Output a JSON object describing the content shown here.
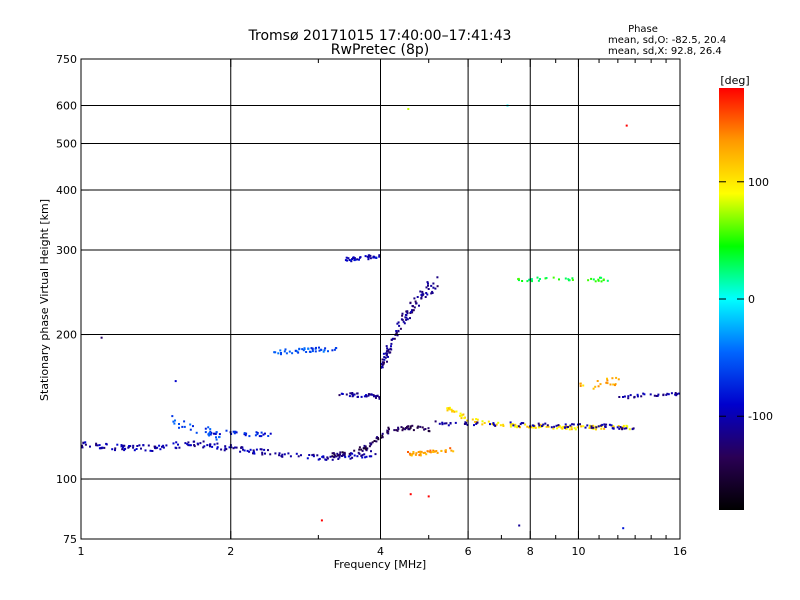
{
  "chart_data": {
    "type": "scatter",
    "title": "Tromsø 20171015 17:40:00–17:41:43",
    "subtitle": "RwPretec (8p)",
    "xlabel": "Frequency [MHz]",
    "ylabel": "Stationary phase Virtual Height [km]",
    "x_scale": "log",
    "y_scale": "log",
    "xlim": [
      1,
      16
    ],
    "ylim": [
      75,
      750
    ],
    "grid": true,
    "x_ticks": [
      "1",
      "2",
      "4",
      "6",
      "8",
      "10",
      "16"
    ],
    "x_minor_ticks": [
      3,
      5,
      7,
      9,
      11,
      12,
      13,
      14,
      15
    ],
    "x_gridlines": [
      2,
      4,
      6,
      8,
      10
    ],
    "y_ticks": [
      "75",
      "100",
      "200",
      "300",
      "400",
      "500",
      "600",
      "750"
    ],
    "y_gridlines": [
      100,
      200,
      300,
      400,
      500,
      600
    ],
    "stats": {
      "heading": "Phase",
      "line_o": "mean, sd,O: -82.5, 20.4",
      "line_x": "mean, sd,X:  92.8, 26.4"
    },
    "colorbar": {
      "label": "[deg]",
      "range": [
        -180,
        180
      ],
      "tick_labels": [
        "100",
        "0",
        "-100"
      ],
      "tick_values": [
        100,
        0,
        -100
      ],
      "colors": [
        "#ff0000",
        "#ff9900",
        "#ffff00",
        "#00ff00",
        "#00ffff",
        "#0066ff",
        "#0000cc",
        "#2a0055",
        "#000000"
      ]
    },
    "traces": [
      {
        "x": [
          1.0,
          1.25,
          1.4,
          1.6,
          1.8,
          2.0,
          2.3,
          2.6,
          2.8,
          3.0,
          3.3,
          3.6,
          3.9
        ],
        "y": [
          118,
          116,
          116,
          118,
          118,
          116,
          114,
          112,
          111,
          111,
          111,
          112,
          113
        ],
        "phase": -105,
        "spread": 1.5,
        "n": 180
      },
      {
        "x": [
          3.2,
          3.5,
          3.8,
          4.0,
          4.2,
          4.6,
          5.0
        ],
        "y": [
          112,
          113,
          117,
          123,
          127,
          128,
          127
        ],
        "phase": -135,
        "spread": 1.2,
        "n": 90
      },
      {
        "x": [
          4.5,
          4.8,
          5.2,
          5.6
        ],
        "y": [
          113,
          113,
          114,
          115
        ],
        "phase": 135,
        "spread": 1.0,
        "n": 40
      },
      {
        "x": [
          5.4,
          6.0,
          6.5,
          7.0,
          7.5,
          8.0,
          9.0,
          10.0,
          11.0,
          12.0,
          13.0
        ],
        "y": [
          141,
          133,
          131,
          130,
          129,
          129,
          128,
          128,
          128,
          128,
          128
        ],
        "phase": 105,
        "spread": 1.0,
        "n": 110
      },
      {
        "x": [
          5.2,
          6.0,
          7.0,
          8.0,
          9.0,
          10.0,
          11.0,
          12.0,
          13.0
        ],
        "y": [
          131,
          130,
          130,
          130,
          129,
          129,
          129,
          128,
          128
        ],
        "phase": -110,
        "spread": 1.0,
        "n": 80
      },
      {
        "x": [
          1.8,
          2.0,
          2.2,
          2.4
        ],
        "y": [
          125,
          125,
          124,
          124
        ],
        "phase": -80,
        "spread": 1.0,
        "n": 35
      },
      {
        "x": [
          3.3,
          3.5,
          3.8,
          4.0
        ],
        "y": [
          150,
          150,
          149,
          148
        ],
        "phase": -110,
        "spread": 1.0,
        "n": 35
      },
      {
        "x": [
          2.4,
          2.7,
          3.0,
          3.3
        ],
        "y": [
          183,
          185,
          186,
          187
        ],
        "phase": -55,
        "spread": 1.2,
        "n": 45
      },
      {
        "x": [
          3.4,
          3.6,
          3.8,
          4.0
        ],
        "y": [
          286,
          288,
          290,
          292
        ],
        "phase": -95,
        "spread": 1.0,
        "n": 35
      },
      {
        "x": [
          4.0,
          4.4,
          4.8,
          5.2
        ],
        "y": [
          170,
          210,
          240,
          260
        ],
        "phase": -115,
        "spread": 3.5,
        "n": 110
      },
      {
        "x": [
          7.5,
          8.5,
          9.5,
          10.5,
          11.5
        ],
        "y": [
          260,
          261,
          262,
          261,
          260
        ],
        "phase": 40,
        "spread": 1.0,
        "n": 35
      },
      {
        "x": [
          12.0,
          13.0,
          14.0,
          15.0,
          16.0
        ],
        "y": [
          148,
          149,
          150,
          150,
          150
        ],
        "phase": -105,
        "spread": 1.0,
        "n": 30
      },
      {
        "x": [
          10.0,
          11.0,
          12.0
        ],
        "y": [
          155,
          158,
          160
        ],
        "phase": 120,
        "spread": 2.0,
        "n": 20
      },
      {
        "x": [
          1.5,
          1.7,
          1.9
        ],
        "y": [
          133,
          128,
          122
        ],
        "phase": -60,
        "spread": 2.5,
        "n": 25
      }
    ],
    "outliers": [
      {
        "x": 4.55,
        "y": 590,
        "phase": 80
      },
      {
        "x": 7.2,
        "y": 600,
        "phase": 0
      },
      {
        "x": 12.5,
        "y": 545,
        "phase": 180
      },
      {
        "x": 4.6,
        "y": 93,
        "phase": 180
      },
      {
        "x": 5.0,
        "y": 92,
        "phase": 180
      },
      {
        "x": 3.05,
        "y": 82,
        "phase": 180
      },
      {
        "x": 7.6,
        "y": 80,
        "phase": -110
      },
      {
        "x": 12.3,
        "y": 79,
        "phase": -80
      },
      {
        "x": 1.55,
        "y": 160,
        "phase": -90
      },
      {
        "x": 1.1,
        "y": 197,
        "phase": -130
      }
    ]
  }
}
